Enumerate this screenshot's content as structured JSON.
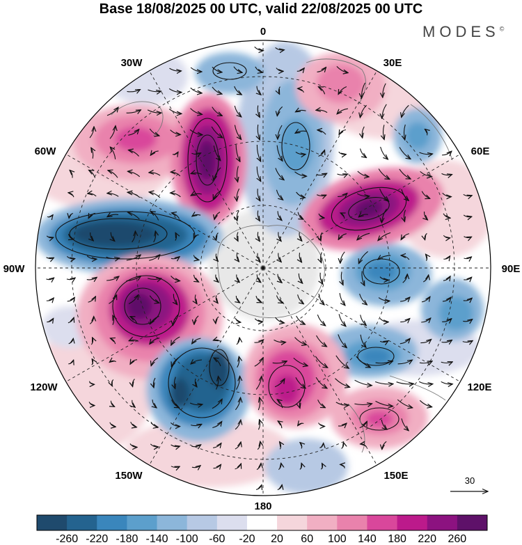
{
  "title": "Base 18/08/2025 00 UTC, valid 22/08/2025 00 UTC",
  "brand": "MODES",
  "brand_mark": "©",
  "longitudes": {
    "lon_0": "0",
    "lon_30E": "30E",
    "lon_60E": "60E",
    "lon_90E": "90E",
    "lon_120E": "120E",
    "lon_150E": "150E",
    "lon_180": "180",
    "lon_150W": "150W",
    "lon_120W": "120W",
    "lon_90W": "90W",
    "lon_60W": "60W",
    "lon_30W": "30W"
  },
  "reference_vector": {
    "label": "30"
  },
  "colorbar": {
    "colors": [
      "#1f4a6d",
      "#24638f",
      "#3a86bc",
      "#5c9fcc",
      "#8cb6da",
      "#b7c9e4",
      "#dcdeee",
      "#ffffff",
      "#f5d6dc",
      "#f1afc3",
      "#e982ac",
      "#d9479b",
      "#bc1a8b",
      "#8c1280",
      "#5e1169"
    ],
    "labels": [
      "-260",
      "-220",
      "-180",
      "-140",
      "-100",
      "-60",
      "-20",
      "20",
      "60",
      "100",
      "140",
      "180",
      "220",
      "260"
    ]
  },
  "anomaly_centers": [
    {
      "name": "neg-center-west",
      "lon": -95,
      "colat": 26,
      "value": -270
    },
    {
      "name": "pos-center-southwest",
      "lon": -105,
      "colat": 28,
      "value": 260
    },
    {
      "name": "pos-center-northwest",
      "lon": -30,
      "colat": 30,
      "value": 240
    },
    {
      "name": "pos-center-east",
      "lon": 60,
      "colat": 24,
      "value": 250
    },
    {
      "name": "pos-center-south",
      "lon": 165,
      "colat": 27,
      "value": 200
    },
    {
      "name": "neg-center-southwest",
      "lon": -150,
      "colat": 30,
      "value": -240
    },
    {
      "name": "neg-center-north",
      "lon": 0,
      "colat": 25,
      "value": -180
    },
    {
      "name": "neg-center-east",
      "lon": 90,
      "colat": 20,
      "value": -180
    },
    {
      "name": "neg-center-southeast",
      "lon": 120,
      "colat": 27,
      "value": -170
    }
  ]
}
